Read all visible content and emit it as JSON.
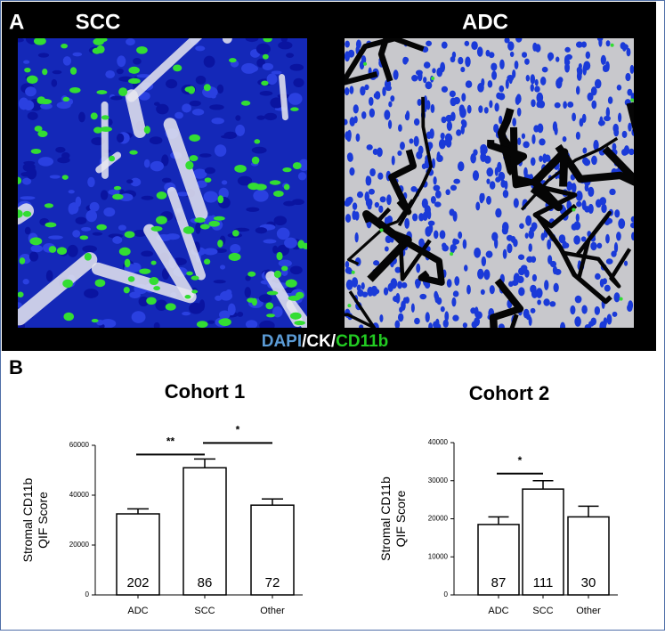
{
  "panel_a": {
    "label": "A",
    "images": [
      "SCC",
      "ADC"
    ],
    "stain": [
      {
        "text": "DAPI",
        "color": "#5b9bd5"
      },
      {
        "text": "/CK/",
        "color": "#ffffff"
      },
      {
        "text": "CD11b",
        "color": "#22cc22"
      }
    ]
  },
  "panel_b": {
    "label": "B"
  },
  "chart_data": [
    {
      "type": "bar",
      "title": "Cohort 1",
      "y_label": [
        "Stromal CD11b",
        "QIF Score"
      ],
      "categories": [
        "ADC",
        "SCC",
        "Other"
      ],
      "values": [
        32500,
        51000,
        36000
      ],
      "errors": [
        2000,
        3500,
        2500
      ],
      "n": [
        202,
        86,
        72
      ],
      "color": "#ffffff",
      "ylim": [
        0,
        60000
      ],
      "yticks": [
        0,
        20000,
        40000,
        60000
      ],
      "annotations": [
        {
          "pair": [
            "ADC",
            "SCC"
          ],
          "label": "**"
        },
        {
          "pair": [
            "SCC",
            "Other"
          ],
          "label": "*"
        }
      ]
    },
    {
      "type": "bar",
      "title": "Cohort 2",
      "y_label": [
        "Stromal CD11b",
        "QIF Score"
      ],
      "categories": [
        "ADC",
        "SCC",
        "Other"
      ],
      "values": [
        18500,
        27800,
        20500
      ],
      "errors": [
        2000,
        2200,
        2800
      ],
      "n": [
        87,
        111,
        30
      ],
      "color": "#ffffff",
      "ylim": [
        0,
        40000
      ],
      "yticks": [
        0,
        10000,
        20000,
        30000,
        40000
      ],
      "annotations": [
        {
          "pair": [
            "ADC",
            "SCC"
          ],
          "label": "*"
        }
      ]
    }
  ]
}
